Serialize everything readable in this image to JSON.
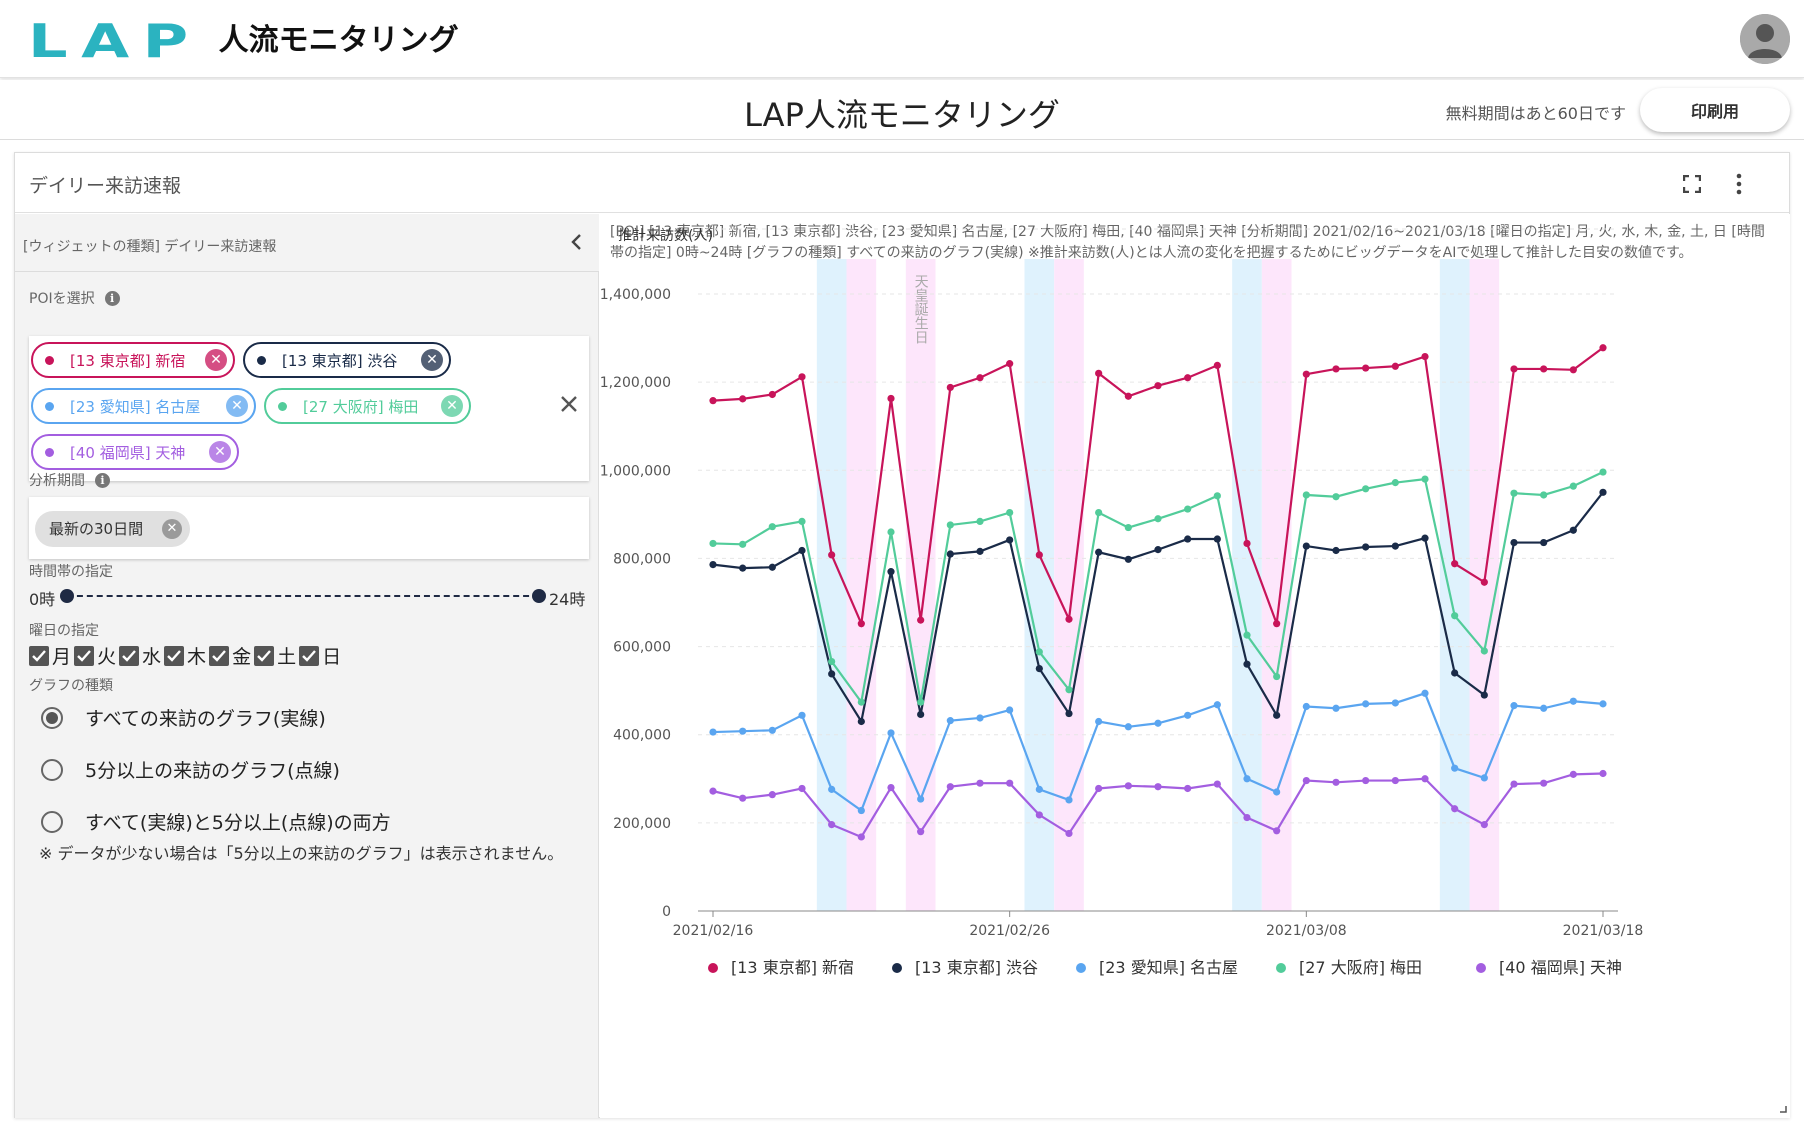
{
  "app": {
    "logo_mark": "LAP",
    "logo_text": "人流モニタリング",
    "page_title": "LAP人流モニタリング",
    "trial_text": "無料期間はあと60日です",
    "print_label": "印刷用"
  },
  "widget": {
    "title": "デイリー来訪速報",
    "panel_head": "[ウィジェットの種類] デイリー来訪速報",
    "poi_label": "POIを選択",
    "period_label": "分析期間",
    "period_value": "最新の30日間",
    "time_label": "時間帯の指定",
    "time_min": "0時",
    "time_max": "24時",
    "weekday_label": "曜日の指定",
    "weekdays": [
      "月",
      "火",
      "水",
      "木",
      "金",
      "土",
      "日"
    ],
    "graph_type_label": "グラフの種類",
    "graph_types": [
      {
        "label": "すべての来訪のグラフ(実線)",
        "selected": true
      },
      {
        "label": "5分以上の来訪のグラフ(点線)",
        "selected": false
      },
      {
        "label": "すべて(実線)と5分以上(点線)の両方",
        "selected": false
      }
    ],
    "note": "※ データが少ない場合は「5分以上の来訪のグラフ」は表示されません。",
    "description": "[POI] [13 東京都] 新宿, [13 東京都] 渋谷, [23 愛知県] 名古屋, [27 大阪府] 梅田, [40 福岡県] 天神 [分析期間] 2021/02/16~2021/03/18 [曜日の指定] 月, 火, 水, 木, 金, 土, 日 [時間帯の指定] 0時~24時 [グラフの種類] すべての来訪のグラフ(実線) ※推計来訪数(人)とは人流の変化を把握するためにビッグデータをAIで処理して推計した目安の数値です。"
  },
  "pois": [
    {
      "label": "[13 東京都] 新宿",
      "color": "#c8145a"
    },
    {
      "label": "[13 東京都] 渋谷",
      "color": "#1a2b48"
    },
    {
      "label": "[23 愛知県] 名古屋",
      "color": "#5aa5f0"
    },
    {
      "label": "[27 大阪府] 梅田",
      "color": "#52cc9a"
    },
    {
      "label": "[40 福岡県] 天神",
      "color": "#a35ee0"
    }
  ],
  "chart_data": {
    "type": "line",
    "ylabel": "推計来訪数(人)",
    "ylim": [
      0,
      1400000
    ],
    "yticks": [
      "0",
      "200,000",
      "400,000",
      "600,000",
      "800,000",
      "1,000,000",
      "1,200,000",
      "1,400,000"
    ],
    "x_start": "2021/02/16",
    "x_end": "2021/03/18",
    "xticks": [
      "2021/02/16",
      "2021/02/26",
      "2021/03/08",
      "2021/03/18"
    ],
    "x": [
      "2021/02/16",
      "2021/02/17",
      "2021/02/18",
      "2021/02/19",
      "2021/02/20",
      "2021/02/21",
      "2021/02/22",
      "2021/02/23",
      "2021/02/24",
      "2021/02/25",
      "2021/02/26",
      "2021/02/27",
      "2021/02/28",
      "2021/03/01",
      "2021/03/02",
      "2021/03/03",
      "2021/03/04",
      "2021/03/05",
      "2021/03/06",
      "2021/03/07",
      "2021/03/08",
      "2021/03/09",
      "2021/03/10",
      "2021/03/11",
      "2021/03/12",
      "2021/03/13",
      "2021/03/14",
      "2021/03/15",
      "2021/03/16",
      "2021/03/17",
      "2021/03/18"
    ],
    "saturdays": [
      "2021/02/20",
      "2021/02/27",
      "2021/03/06",
      "2021/03/13"
    ],
    "sundays_holidays": [
      "2021/02/21",
      "2021/02/23",
      "2021/02/28",
      "2021/03/07",
      "2021/03/14"
    ],
    "holiday_label": "天皇誕生日",
    "saturday_color": "#dff2fd",
    "sunday_color": "#fde6fb",
    "grid": "horizontal-dashed",
    "legend_position": "bottom",
    "series": [
      {
        "name": "[13 東京都] 新宿",
        "color": "#c8145a",
        "values": [
          1158000,
          1162000,
          1172000,
          1212000,
          808000,
          652000,
          1163000,
          660000,
          1188000,
          1210000,
          1242000,
          808000,
          662000,
          1220000,
          1168000,
          1192000,
          1210000,
          1238000,
          834000,
          652000,
          1218000,
          1230000,
          1232000,
          1236000,
          1258000,
          788000,
          746000,
          1230000,
          1230000,
          1228000,
          1278000
        ]
      },
      {
        "name": "[13 東京都] 渋谷",
        "color": "#1a2b48",
        "values": [
          786000,
          778000,
          780000,
          818000,
          538000,
          430000,
          770000,
          446000,
          810000,
          816000,
          842000,
          550000,
          448000,
          814000,
          798000,
          820000,
          844000,
          844000,
          560000,
          444000,
          828000,
          818000,
          826000,
          828000,
          846000,
          540000,
          490000,
          836000,
          836000,
          864000,
          950000
        ]
      },
      {
        "name": "[23 愛知県] 名古屋",
        "color": "#5aa5f0",
        "values": [
          406000,
          408000,
          410000,
          444000,
          276000,
          228000,
          404000,
          254000,
          432000,
          438000,
          456000,
          276000,
          252000,
          430000,
          418000,
          426000,
          444000,
          468000,
          300000,
          270000,
          464000,
          460000,
          470000,
          472000,
          494000,
          324000,
          302000,
          466000,
          460000,
          476000,
          470000
        ]
      },
      {
        "name": "[27 大阪府] 梅田",
        "color": "#52cc9a",
        "values": [
          834000,
          832000,
          872000,
          884000,
          566000,
          474000,
          860000,
          474000,
          876000,
          884000,
          904000,
          588000,
          502000,
          904000,
          870000,
          890000,
          912000,
          942000,
          626000,
          532000,
          944000,
          940000,
          958000,
          972000,
          980000,
          670000,
          590000,
          948000,
          944000,
          964000,
          996000
        ]
      },
      {
        "name": "[40 福岡県] 天神",
        "color": "#a35ee0",
        "values": [
          272000,
          256000,
          264000,
          278000,
          196000,
          168000,
          280000,
          180000,
          282000,
          290000,
          290000,
          218000,
          176000,
          278000,
          284000,
          282000,
          278000,
          288000,
          212000,
          182000,
          296000,
          292000,
          296000,
          296000,
          300000,
          232000,
          196000,
          288000,
          290000,
          310000,
          312000
        ]
      }
    ]
  }
}
